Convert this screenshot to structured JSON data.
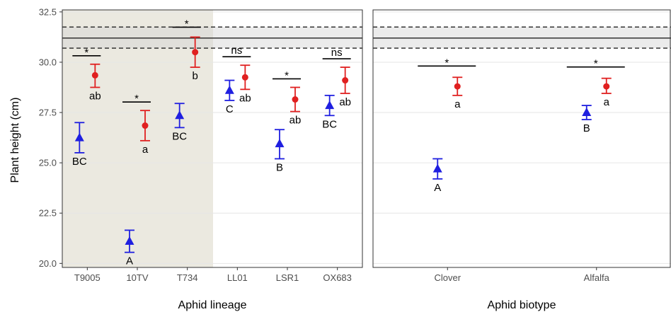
{
  "chart_data": [
    {
      "type": "scatter",
      "ylabel": "Plant height (cm)",
      "xlabel": "Aphid lineage",
      "categories": [
        "T9005",
        "10TV",
        "T734",
        "LL01",
        "LSR1",
        "OX683"
      ],
      "ylim": [
        19.8,
        32.6
      ],
      "yticks": [
        "20.0",
        "22.5",
        "25.0",
        "27.5",
        "30.0",
        "32.5"
      ],
      "grid": true,
      "shaded_categories": [
        "T9005",
        "10TV",
        "T734"
      ],
      "control_reference": {
        "mean": 31.2,
        "lower": 30.7,
        "upper": 31.75
      },
      "series": [
        {
          "marker": "triangle",
          "color": "#1f1fe0",
          "values": [
            26.25,
            21.1,
            27.35,
            28.6,
            25.95,
            27.85
          ],
          "lower": [
            25.5,
            20.55,
            26.75,
            28.1,
            25.2,
            27.35
          ],
          "upper": [
            27.0,
            21.65,
            27.95,
            29.1,
            26.65,
            28.35
          ],
          "letters": [
            "BC",
            "A",
            "BC",
            "C",
            "B",
            "BC"
          ]
        },
        {
          "marker": "circle",
          "color": "#e02020",
          "values": [
            29.35,
            26.85,
            30.5,
            29.25,
            28.15,
            29.1
          ],
          "lower": [
            28.75,
            26.1,
            29.75,
            28.65,
            27.55,
            28.45
          ],
          "upper": [
            29.9,
            27.6,
            31.25,
            29.85,
            28.75,
            29.75
          ],
          "letters": [
            "ab",
            "a",
            "b",
            "ab",
            "ab",
            "ab"
          ]
        }
      ],
      "significance": [
        "*",
        "*",
        "*",
        "ns",
        "*",
        "ns"
      ]
    },
    {
      "type": "scatter",
      "xlabel": "Aphid biotype",
      "categories": [
        "Clover",
        "Alfalfa"
      ],
      "ylim": [
        19.8,
        32.6
      ],
      "grid": true,
      "control_reference": {
        "mean": 31.2,
        "lower": 30.7,
        "upper": 31.75
      },
      "series": [
        {
          "marker": "triangle",
          "color": "#1f1fe0",
          "values": [
            24.7,
            27.5
          ],
          "lower": [
            24.2,
            27.15
          ],
          "upper": [
            25.2,
            27.85
          ],
          "letters": [
            "A",
            "B"
          ]
        },
        {
          "marker": "circle",
          "color": "#e02020",
          "values": [
            28.8,
            28.8
          ],
          "lower": [
            28.35,
            28.45
          ],
          "upper": [
            29.25,
            29.2
          ],
          "letters": [
            "a",
            "a"
          ]
        }
      ],
      "significance": [
        "*",
        "*"
      ]
    }
  ]
}
